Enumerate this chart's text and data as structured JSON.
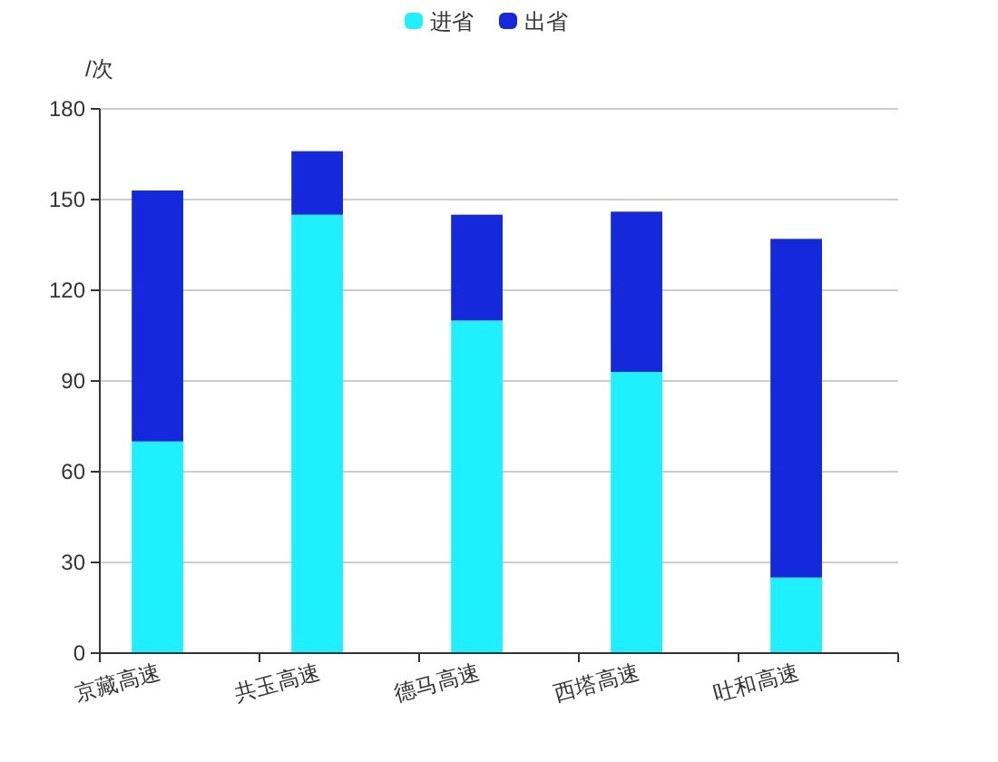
{
  "chart_data": {
    "type": "bar",
    "stacked": true,
    "ylabel": "/次",
    "categories": [
      "京藏高速",
      "共玉高速",
      "德马高速",
      "西塔高速",
      "吐和高速"
    ],
    "series": [
      {
        "name": "进省",
        "color": "#1ef0ff",
        "values": [
          70,
          145,
          110,
          93,
          25
        ]
      },
      {
        "name": "出省",
        "color": "#1428dc",
        "values": [
          83,
          21,
          35,
          53,
          112
        ]
      }
    ],
    "ylim": [
      0,
      180
    ],
    "yticks": [
      0,
      30,
      60,
      90,
      120,
      150,
      180
    ],
    "grid": "y",
    "legend": "top"
  }
}
